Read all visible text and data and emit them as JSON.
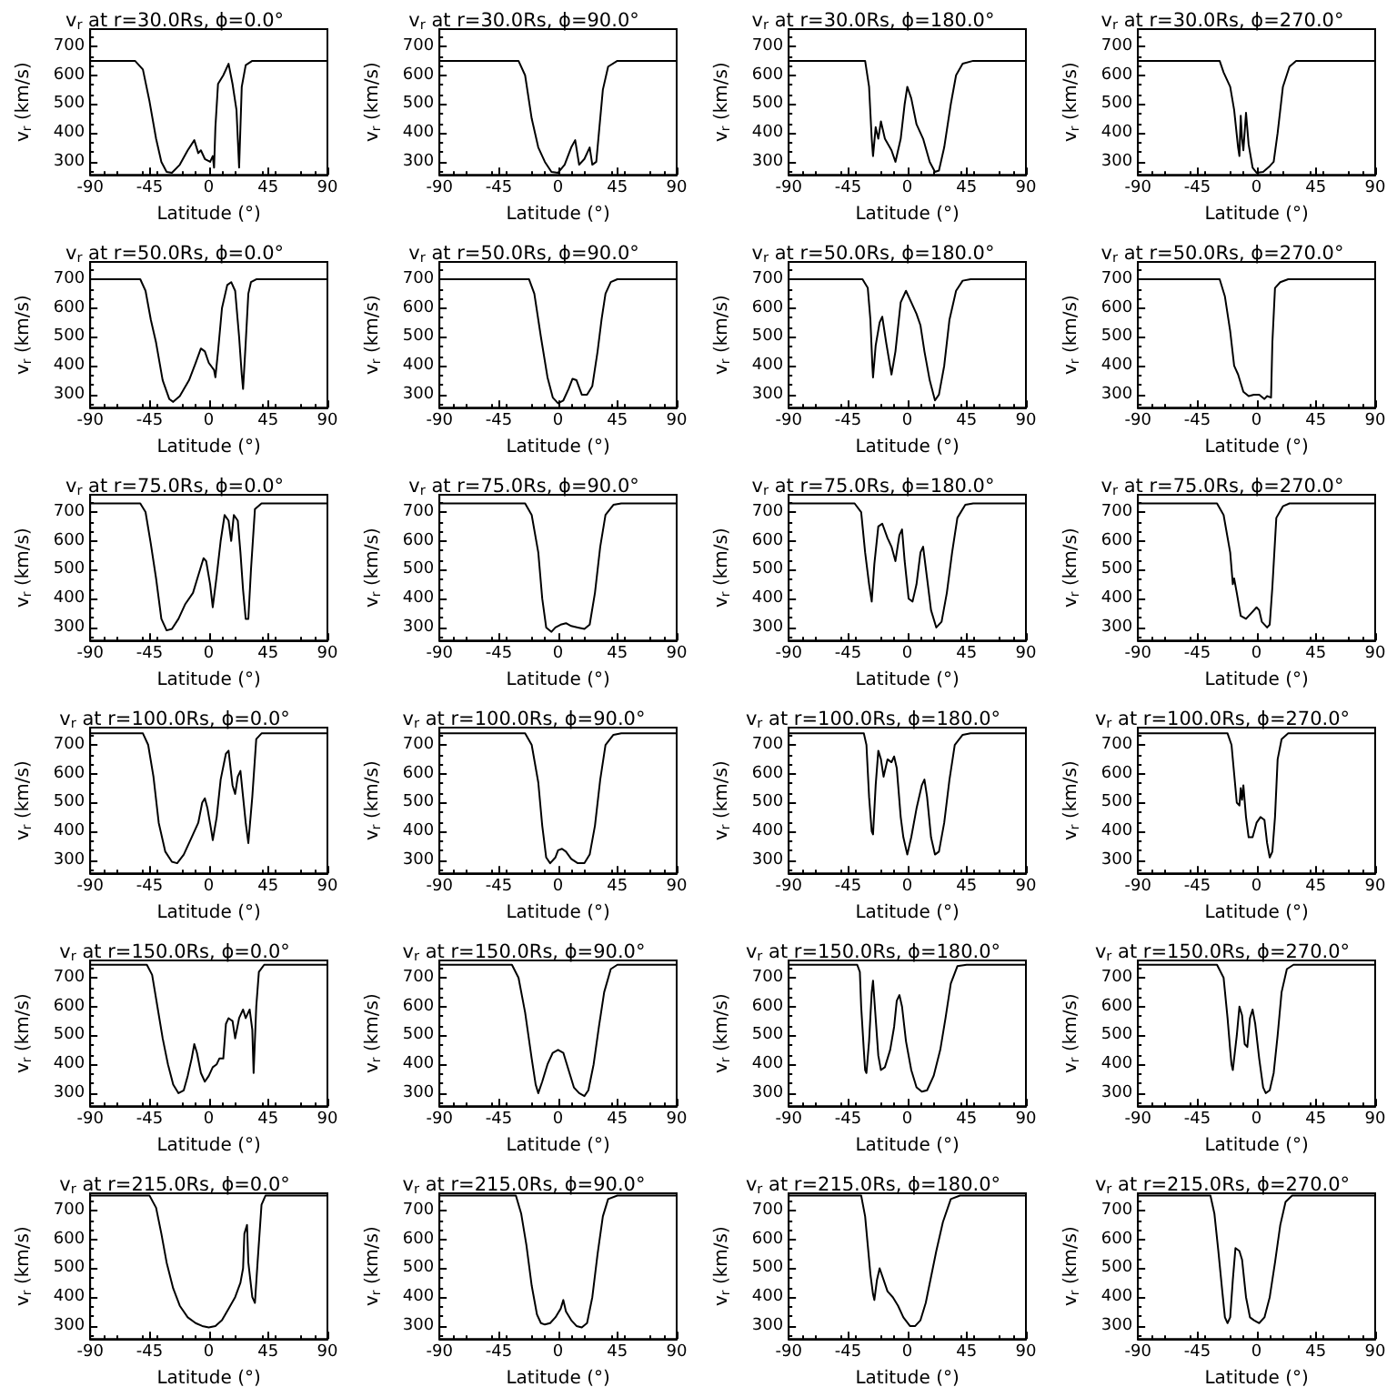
{
  "chart_data": [
    {
      "type": "line",
      "title": "v$_{r}$ at r=30.0Rs, ϕ=0.0°",
      "xlabel": "Latitude (°)",
      "ylabel": "v$_{r}$ (km/s)",
      "xlim": [
        -90,
        90
      ],
      "xticks": [
        -90,
        -45,
        0,
        45,
        90
      ],
      "ylim": [
        255,
        760
      ],
      "yticks": [
        300,
        400,
        500,
        600,
        700
      ],
      "marker": "none",
      "x": [
        -90,
        -56,
        -50,
        -45,
        -40,
        -36,
        -32,
        -28,
        -22,
        -16,
        -11,
        -8,
        -6,
        -3,
        1,
        3,
        4,
        5,
        7,
        11,
        15,
        18,
        21,
        23,
        25,
        28,
        33,
        90
      ],
      "series": [
        {
          "color": "#000000",
          "values": [
            650,
            650,
            620,
            510,
            380,
            300,
            265,
            262,
            290,
            340,
            375,
            330,
            340,
            310,
            300,
            320,
            280,
            420,
            570,
            600,
            640,
            570,
            480,
            280,
            560,
            635,
            650,
            650
          ]
        }
      ]
    },
    {
      "type": "line",
      "title": "v$_{r}$ at r=30.0Rs, ϕ=90.0°",
      "xlabel": "Latitude (°)",
      "ylabel": "v$_{r}$ (km/s)",
      "xlim": [
        -90,
        90
      ],
      "xticks": [
        -90,
        -45,
        0,
        45,
        90
      ],
      "ylim": [
        255,
        760
      ],
      "yticks": [
        300,
        400,
        500,
        600,
        700
      ],
      "marker": "none",
      "x": [
        -90,
        -30,
        -25,
        -20,
        -15,
        -10,
        -5,
        0,
        5,
        10,
        13,
        16,
        20,
        24,
        26,
        29,
        31,
        34,
        38,
        45,
        90
      ],
      "series": [
        {
          "color": "#000000",
          "values": [
            650,
            650,
            600,
            450,
            350,
            300,
            265,
            262,
            290,
            350,
            375,
            290,
            310,
            350,
            290,
            300,
            400,
            550,
            630,
            650,
            650
          ]
        }
      ]
    },
    {
      "type": "line",
      "title": "v$_{r}$ at r=30.0Rs, ϕ=180.0°",
      "xlabel": "Latitude (°)",
      "ylabel": "v$_{r}$ (km/s)",
      "xlim": [
        -90,
        90
      ],
      "xticks": [
        -90,
        -45,
        0,
        45,
        90
      ],
      "ylim": [
        255,
        760
      ],
      "yticks": [
        300,
        400,
        500,
        600,
        700
      ],
      "marker": "none",
      "x": [
        -90,
        -32,
        -29,
        -27,
        -26,
        -24,
        -22,
        -20,
        -17,
        -12,
        -9,
        -5,
        -2,
        0,
        3,
        7,
        12,
        17,
        21,
        24,
        28,
        33,
        37,
        42,
        50,
        90
      ],
      "series": [
        {
          "color": "#000000",
          "values": [
            650,
            650,
            560,
            380,
            320,
            420,
            380,
            440,
            380,
            340,
            300,
            380,
            500,
            560,
            520,
            430,
            380,
            300,
            265,
            270,
            350,
            500,
            600,
            640,
            650,
            650
          ]
        }
      ]
    },
    {
      "type": "line",
      "title": "v$_{r}$ at r=30.0Rs, ϕ=270.0°",
      "xlabel": "Latitude (°)",
      "ylabel": "v$_{r}$ (km/s)",
      "xlim": [
        -90,
        90
      ],
      "xticks": [
        -90,
        -45,
        0,
        45,
        90
      ],
      "ylim": [
        255,
        760
      ],
      "yticks": [
        300,
        400,
        500,
        600,
        700
      ],
      "marker": "none",
      "x": [
        -90,
        -28,
        -25,
        -20,
        -17,
        -14,
        -13,
        -12,
        -11,
        -10,
        -8,
        -6,
        -3,
        0,
        5,
        10,
        13,
        16,
        20,
        25,
        30,
        90
      ],
      "series": [
        {
          "color": "#000000",
          "values": [
            650,
            650,
            610,
            560,
            480,
            350,
            320,
            460,
            380,
            340,
            470,
            360,
            280,
            262,
            265,
            285,
            300,
            400,
            560,
            630,
            650,
            650
          ]
        }
      ]
    },
    {
      "type": "line",
      "title": "v$_{r}$ at r=50.0Rs, ϕ=0.0°",
      "xlabel": "Latitude (°)",
      "ylabel": "v$_{r}$ (km/s)",
      "xlim": [
        -90,
        90
      ],
      "xticks": [
        -90,
        -45,
        0,
        45,
        90
      ],
      "ylim": [
        255,
        760
      ],
      "yticks": [
        300,
        400,
        500,
        600,
        700
      ],
      "marker": "none",
      "x": [
        -90,
        -52,
        -48,
        -44,
        -40,
        -35,
        -30,
        -27,
        -22,
        -15,
        -10,
        -6,
        -3,
        0,
        4,
        5,
        7,
        10,
        14,
        17,
        20,
        23,
        25,
        26,
        28,
        30,
        32,
        36,
        90
      ],
      "series": [
        {
          "color": "#000000",
          "values": [
            700,
            700,
            660,
            560,
            480,
            350,
            285,
            275,
            295,
            350,
            410,
            460,
            450,
            410,
            385,
            360,
            450,
            600,
            680,
            690,
            660,
            500,
            370,
            320,
            480,
            650,
            690,
            700,
            700
          ]
        }
      ]
    },
    {
      "type": "line",
      "title": "v$_{r}$ at r=50.0Rs, ϕ=90.0°",
      "xlabel": "Latitude (°)",
      "ylabel": "v$_{r}$ (km/s)",
      "xlim": [
        -90,
        90
      ],
      "xticks": [
        -90,
        -45,
        0,
        45,
        90
      ],
      "ylim": [
        255,
        760
      ],
      "yticks": [
        300,
        400,
        500,
        600,
        700
      ],
      "marker": "none",
      "x": [
        -90,
        -22,
        -18,
        -13,
        -8,
        -4,
        0,
        4,
        8,
        11,
        14,
        18,
        22,
        26,
        30,
        33,
        36,
        40,
        45,
        90
      ],
      "series": [
        {
          "color": "#000000",
          "values": [
            700,
            700,
            650,
            500,
            360,
            290,
            270,
            280,
            320,
            355,
            350,
            300,
            300,
            330,
            450,
            560,
            650,
            690,
            700,
            700
          ]
        }
      ]
    },
    {
      "type": "line",
      "title": "v$_{r}$ at r=50.0Rs, ϕ=180.0°",
      "xlabel": "Latitude (°)",
      "ylabel": "v$_{r}$ (km/s)",
      "xlim": [
        -90,
        90
      ],
      "xticks": [
        -90,
        -45,
        0,
        45,
        90
      ],
      "ylim": [
        255,
        760
      ],
      "yticks": [
        300,
        400,
        500,
        600,
        700
      ],
      "marker": "none",
      "x": [
        -90,
        -34,
        -30,
        -28,
        -26.5,
        -26,
        -24,
        -21,
        -19,
        -16,
        -12,
        -9,
        -5,
        -1,
        3,
        7,
        10,
        13,
        17,
        21,
        24,
        28,
        32,
        37,
        42,
        48,
        90
      ],
      "series": [
        {
          "color": "#000000",
          "values": [
            700,
            700,
            670,
            560,
            400,
            360,
            470,
            550,
            570,
            480,
            370,
            450,
            620,
            660,
            620,
            580,
            540,
            450,
            350,
            280,
            300,
            400,
            560,
            660,
            695,
            700,
            700
          ]
        }
      ]
    },
    {
      "type": "line",
      "title": "v$_{r}$ at r=50.0Rs, ϕ=270.0°",
      "xlabel": "Latitude (°)",
      "ylabel": "v$_{r}$ (km/s)",
      "xlim": [
        -90,
        90
      ],
      "xticks": [
        -90,
        -45,
        0,
        45,
        90
      ],
      "ylim": [
        255,
        760
      ],
      "yticks": [
        300,
        400,
        500,
        600,
        700
      ],
      "marker": "none",
      "x": [
        -90,
        -28,
        -24,
        -20,
        -17,
        -14,
        -10,
        -6,
        -2,
        2,
        6,
        8,
        11,
        12,
        14,
        18,
        24,
        90
      ],
      "series": [
        {
          "color": "#000000",
          "values": [
            700,
            700,
            640,
            520,
            400,
            370,
            310,
            295,
            300,
            300,
            285,
            295,
            290,
            480,
            670,
            690,
            700,
            700
          ]
        }
      ]
    },
    {
      "type": "line",
      "title": "v$_{r}$ at r=75.0Rs, ϕ=0.0°",
      "xlabel": "Latitude (°)",
      "ylabel": "v$_{r}$ (km/s)",
      "xlim": [
        -90,
        90
      ],
      "xticks": [
        -90,
        -45,
        0,
        45,
        90
      ],
      "ylim": [
        255,
        760
      ],
      "yticks": [
        300,
        400,
        500,
        600,
        700
      ],
      "marker": "none",
      "x": [
        -90,
        -52,
        -48,
        -44,
        -40,
        -36,
        -32,
        -28,
        -23,
        -18,
        -12,
        -8,
        -4,
        -2,
        1,
        3,
        6,
        9,
        12,
        15,
        17,
        19,
        22,
        24,
        26,
        28,
        30,
        32,
        35,
        40,
        90
      ],
      "series": [
        {
          "color": "#000000",
          "values": [
            730,
            730,
            700,
            590,
            470,
            330,
            290,
            295,
            330,
            380,
            420,
            480,
            540,
            530,
            450,
            370,
            480,
            600,
            690,
            670,
            600,
            690,
            670,
            560,
            430,
            330,
            330,
            500,
            710,
            730,
            730
          ]
        }
      ]
    },
    {
      "type": "line",
      "title": "v$_{r}$ at r=75.0Rs, ϕ=90.0°",
      "xlabel": "Latitude (°)",
      "ylabel": "v$_{r}$ (km/s)",
      "xlim": [
        -90,
        90
      ],
      "xticks": [
        -90,
        -45,
        0,
        45,
        90
      ],
      "ylim": [
        255,
        760
      ],
      "yticks": [
        300,
        400,
        500,
        600,
        700
      ],
      "marker": "none",
      "x": [
        -90,
        -25,
        -20,
        -15,
        -12,
        -9,
        -5,
        -2,
        2,
        6,
        10,
        15,
        20,
        24,
        28,
        32,
        36,
        42,
        48,
        90
      ],
      "series": [
        {
          "color": "#000000",
          "values": [
            730,
            730,
            690,
            560,
            400,
            300,
            285,
            300,
            310,
            315,
            305,
            300,
            295,
            310,
            420,
            580,
            690,
            725,
            730,
            730
          ]
        }
      ]
    },
    {
      "type": "line",
      "title": "v$_{r}$ at r=75.0Rs, ϕ=180.0°",
      "xlabel": "Latitude (°)",
      "ylabel": "v$_{r}$ (km/s)",
      "xlim": [
        -90,
        90
      ],
      "xticks": [
        -90,
        -45,
        0,
        45,
        90
      ],
      "ylim": [
        255,
        760
      ],
      "yticks": [
        300,
        400,
        500,
        600,
        700
      ],
      "marker": "none",
      "x": [
        -90,
        -40,
        -35,
        -32,
        -29,
        -27,
        -25,
        -22,
        -19,
        -15,
        -12,
        -9,
        -6,
        -4,
        -2,
        1,
        4,
        7,
        10,
        12,
        15,
        18,
        22,
        26,
        30,
        34,
        38,
        44,
        50,
        90
      ],
      "series": [
        {
          "color": "#000000",
          "values": [
            730,
            730,
            700,
            560,
            450,
            390,
            520,
            650,
            660,
            610,
            580,
            530,
            620,
            640,
            530,
            400,
            390,
            450,
            560,
            580,
            470,
            360,
            300,
            320,
            420,
            560,
            680,
            725,
            730,
            730
          ]
        }
      ]
    },
    {
      "type": "line",
      "title": "v$_{r}$ at r=75.0Rs, ϕ=270.0°",
      "xlabel": "Latitude (°)",
      "ylabel": "v$_{r}$ (km/s)",
      "xlim": [
        -90,
        90
      ],
      "xticks": [
        -90,
        -45,
        0,
        45,
        90
      ],
      "ylim": [
        255,
        760
      ],
      "yticks": [
        300,
        400,
        500,
        600,
        700
      ],
      "marker": "none",
      "x": [
        -90,
        -30,
        -25,
        -20,
        -18,
        -17,
        -15,
        -12,
        -8,
        -4,
        0,
        2,
        4,
        8,
        10,
        12,
        15,
        20,
        25,
        90
      ],
      "series": [
        {
          "color": "#000000",
          "values": [
            730,
            730,
            690,
            560,
            450,
            470,
            420,
            340,
            330,
            350,
            370,
            360,
            320,
            300,
            310,
            440,
            680,
            720,
            730,
            730
          ]
        }
      ]
    },
    {
      "type": "line",
      "title": "v$_{r}$ at r=100.0Rs, ϕ=0.0°",
      "xlabel": "Latitude (°)",
      "ylabel": "v$_{r}$ (km/s)",
      "xlim": [
        -90,
        90
      ],
      "xticks": [
        -90,
        -45,
        0,
        45,
        90
      ],
      "ylim": [
        255,
        760
      ],
      "yticks": [
        300,
        400,
        500,
        600,
        700
      ],
      "marker": "none",
      "x": [
        -90,
        -50,
        -46,
        -42,
        -38,
        -33,
        -28,
        -24,
        -19,
        -13,
        -8,
        -5,
        -3,
        -1,
        2,
        3,
        6,
        9,
        13,
        15,
        18,
        20,
        22,
        24,
        26,
        28,
        30,
        33,
        36,
        40,
        90
      ],
      "series": [
        {
          "color": "#000000",
          "values": [
            740,
            740,
            700,
            590,
            430,
            330,
            295,
            290,
            320,
            380,
            430,
            500,
            515,
            480,
            400,
            370,
            450,
            580,
            670,
            680,
            560,
            530,
            590,
            610,
            520,
            430,
            360,
            520,
            720,
            740,
            740
          ]
        }
      ]
    },
    {
      "type": "line",
      "title": "v$_{r}$ at r=100.0Rs, ϕ=90.0°",
      "xlabel": "Latitude (°)",
      "ylabel": "v$_{r}$ (km/s)",
      "xlim": [
        -90,
        90
      ],
      "xticks": [
        -90,
        -45,
        0,
        45,
        90
      ],
      "ylim": [
        255,
        760
      ],
      "yticks": [
        300,
        400,
        500,
        600,
        700
      ],
      "marker": "none",
      "x": [
        -90,
        -25,
        -20,
        -15,
        -12,
        -9,
        -6,
        -2,
        0,
        3,
        6,
        10,
        15,
        20,
        24,
        28,
        32,
        36,
        42,
        48,
        90
      ],
      "series": [
        {
          "color": "#000000",
          "values": [
            740,
            740,
            700,
            570,
            420,
            310,
            290,
            310,
            335,
            340,
            330,
            305,
            290,
            290,
            320,
            420,
            580,
            700,
            735,
            740,
            740
          ]
        }
      ]
    },
    {
      "type": "line",
      "title": "v$_{r}$ at r=100.0Rs, ϕ=180.0°",
      "xlabel": "Latitude (°)",
      "ylabel": "v$_{r}$ (km/s)",
      "xlim": [
        -90,
        90
      ],
      "xticks": [
        -90,
        -45,
        0,
        45,
        90
      ],
      "ylim": [
        255,
        760
      ],
      "yticks": [
        300,
        400,
        500,
        600,
        700
      ],
      "marker": "none",
      "x": [
        -90,
        -33,
        -31,
        -29,
        -27,
        -26,
        -24,
        -22,
        -20,
        -18,
        -15,
        -12,
        -10,
        -8,
        -5,
        -3,
        0,
        3,
        7,
        11,
        13,
        15,
        18,
        21,
        24,
        28,
        32,
        36,
        42,
        48,
        90
      ],
      "series": [
        {
          "color": "#000000",
          "values": [
            740,
            740,
            700,
            520,
            400,
            390,
            560,
            680,
            650,
            590,
            650,
            640,
            660,
            620,
            450,
            380,
            320,
            380,
            480,
            560,
            580,
            520,
            380,
            320,
            330,
            430,
            580,
            700,
            735,
            740,
            740
          ]
        }
      ]
    },
    {
      "type": "line",
      "title": "v$_{r}$ at r=100.0Rs, ϕ=270.0°",
      "xlabel": "Latitude (°)",
      "ylabel": "v$_{r}$ (km/s)",
      "xlim": [
        -90,
        90
      ],
      "xticks": [
        -90,
        -45,
        0,
        45,
        90
      ],
      "ylim": [
        255,
        760
      ],
      "yticks": [
        300,
        400,
        500,
        600,
        700
      ],
      "marker": "none",
      "x": [
        -90,
        -22,
        -19,
        -17,
        -15,
        -13,
        -12,
        -11,
        -10,
        -8,
        -6,
        -3,
        0,
        3,
        6,
        8,
        10,
        12,
        14,
        16,
        19,
        24,
        90
      ],
      "series": [
        {
          "color": "#000000",
          "values": [
            740,
            740,
            700,
            600,
            500,
            490,
            550,
            510,
            560,
            450,
            380,
            380,
            430,
            450,
            440,
            360,
            310,
            330,
            450,
            650,
            720,
            740,
            740
          ]
        }
      ]
    },
    {
      "type": "line",
      "title": "v$_{r}$ at r=150.0Rs, ϕ=0.0°",
      "xlabel": "Latitude (°)",
      "ylabel": "v$_{r}$ (km/s)",
      "xlim": [
        -90,
        90
      ],
      "xticks": [
        -90,
        -45,
        0,
        45,
        90
      ],
      "ylim": [
        255,
        760
      ],
      "yticks": [
        300,
        400,
        500,
        600,
        700
      ],
      "marker": "none",
      "x": [
        -90,
        -47,
        -43,
        -39,
        -35,
        -31,
        -27,
        -23,
        -19,
        -16,
        -13,
        -11,
        -9,
        -6,
        -3,
        0,
        3,
        6,
        8,
        11,
        13,
        15,
        18,
        20,
        23,
        26,
        28,
        31,
        33,
        34,
        36,
        38,
        42,
        90
      ],
      "series": [
        {
          "color": "#000000",
          "values": [
            745,
            745,
            710,
            600,
            490,
            400,
            330,
            300,
            310,
            360,
            420,
            470,
            440,
            370,
            340,
            360,
            390,
            400,
            420,
            420,
            540,
            560,
            550,
            490,
            560,
            590,
            560,
            590,
            520,
            370,
            600,
            720,
            745,
            745
          ]
        }
      ]
    },
    {
      "type": "line",
      "title": "v$_{r}$ at r=150.0Rs, ϕ=90.0°",
      "xlabel": "Latitude (°)",
      "ylabel": "v$_{r}$ (km/s)",
      "xlim": [
        -90,
        90
      ],
      "xticks": [
        -90,
        -45,
        0,
        45,
        90
      ],
      "ylim": [
        255,
        760
      ],
      "yticks": [
        300,
        400,
        500,
        600,
        700
      ],
      "marker": "none",
      "x": [
        -90,
        -35,
        -30,
        -25,
        -20,
        -17,
        -15,
        -12,
        -8,
        -4,
        0,
        4,
        8,
        12,
        16,
        20,
        23,
        27,
        31,
        35,
        40,
        45,
        90
      ],
      "series": [
        {
          "color": "#000000",
          "values": [
            745,
            745,
            700,
            580,
            420,
            330,
            300,
            340,
            400,
            440,
            450,
            440,
            380,
            320,
            300,
            290,
            310,
            400,
            530,
            650,
            730,
            745,
            745
          ]
        }
      ]
    },
    {
      "type": "line",
      "title": "v$_{r}$ at r=150.0Rs, ϕ=180.0°",
      "xlabel": "Latitude (°)",
      "ylabel": "v$_{r}$ (km/s)",
      "xlim": [
        -90,
        90
      ],
      "xticks": [
        -90,
        -45,
        0,
        45,
        90
      ],
      "ylim": [
        255,
        760
      ],
      "yticks": [
        300,
        400,
        500,
        600,
        700
      ],
      "marker": "none",
      "x": [
        -90,
        -38,
        -36,
        -35,
        -33,
        -32,
        -31,
        -29,
        -27,
        -26,
        -24,
        -22,
        -20,
        -17,
        -13,
        -10,
        -8,
        -6,
        -4,
        -1,
        3,
        7,
        11,
        15,
        20,
        25,
        29,
        33,
        38,
        45,
        90
      ],
      "series": [
        {
          "color": "#000000",
          "values": [
            745,
            745,
            720,
            600,
            450,
            380,
            370,
            480,
            650,
            690,
            560,
            430,
            380,
            390,
            450,
            530,
            620,
            640,
            600,
            480,
            380,
            320,
            305,
            310,
            360,
            450,
            560,
            680,
            740,
            745,
            745
          ]
        }
      ]
    },
    {
      "type": "line",
      "title": "v$_{r}$ at r=150.0Rs, ϕ=270.0°",
      "xlabel": "Latitude (°)",
      "ylabel": "v$_{r}$ (km/s)",
      "xlim": [
        -90,
        90
      ],
      "xticks": [
        -90,
        -45,
        0,
        45,
        90
      ],
      "ylim": [
        255,
        760
      ],
      "yticks": [
        300,
        400,
        500,
        600,
        700
      ],
      "marker": "none",
      "x": [
        -90,
        -30,
        -25,
        -22,
        -20,
        -19,
        -18,
        -15,
        -13,
        -11,
        -9,
        -7,
        -5,
        -3,
        -1,
        2,
        5,
        7,
        10,
        13,
        16,
        19,
        23,
        28,
        90
      ],
      "series": [
        {
          "color": "#000000",
          "values": [
            745,
            745,
            700,
            560,
            450,
            400,
            380,
            500,
            600,
            570,
            470,
            460,
            560,
            590,
            540,
            420,
            320,
            300,
            310,
            370,
            500,
            650,
            730,
            745,
            745
          ]
        }
      ]
    },
    {
      "type": "line",
      "title": "v$_{r}$ at r=215.0Rs, ϕ=0.0°",
      "xlabel": "Latitude (°)",
      "ylabel": "v$_{r}$ (km/s)",
      "xlim": [
        -90,
        90
      ],
      "xticks": [
        -90,
        -45,
        0,
        45,
        90
      ],
      "ylim": [
        255,
        760
      ],
      "yticks": [
        300,
        400,
        500,
        600,
        700
      ],
      "marker": "none",
      "x": [
        -90,
        -45,
        -40,
        -36,
        -32,
        -27,
        -22,
        -16,
        -10,
        -5,
        0,
        5,
        10,
        15,
        20,
        24,
        26,
        27,
        29,
        30,
        33,
        35,
        37,
        40,
        43,
        90
      ],
      "series": [
        {
          "color": "#000000",
          "values": [
            752,
            752,
            710,
            620,
            520,
            430,
            370,
            330,
            310,
            300,
            295,
            300,
            320,
            360,
            400,
            450,
            500,
            620,
            650,
            520,
            400,
            380,
            520,
            720,
            752,
            752
          ]
        }
      ]
    },
    {
      "type": "line",
      "title": "v$_{r}$ at r=215.0Rs, ϕ=90.0°",
      "xlabel": "Latitude (°)",
      "ylabel": "v$_{r}$ (km/s)",
      "xlim": [
        -90,
        90
      ],
      "xticks": [
        -90,
        -45,
        0,
        45,
        90
      ],
      "ylim": [
        255,
        760
      ],
      "yticks": [
        300,
        400,
        500,
        600,
        700
      ],
      "marker": "none",
      "x": [
        -90,
        -32,
        -28,
        -24,
        -20,
        -16,
        -13,
        -10,
        -6,
        -2,
        2,
        4,
        6,
        10,
        14,
        18,
        22,
        26,
        30,
        34,
        38,
        45,
        90
      ],
      "series": [
        {
          "color": "#000000",
          "values": [
            752,
            752,
            690,
            580,
            440,
            340,
            310,
            305,
            310,
            330,
            360,
            390,
            350,
            320,
            300,
            295,
            310,
            400,
            550,
            680,
            740,
            752,
            752
          ]
        }
      ]
    },
    {
      "type": "line",
      "title": "v$_{r}$ at r=215.0Rs, ϕ=180.0°",
      "xlabel": "Latitude (°)",
      "ylabel": "v$_{r}$ (km/s)",
      "xlim": [
        -90,
        90
      ],
      "xticks": [
        -90,
        -45,
        0,
        45,
        90
      ],
      "ylim": [
        255,
        760
      ],
      "yticks": [
        300,
        400,
        500,
        600,
        700
      ],
      "marker": "none",
      "x": [
        -90,
        -35,
        -32,
        -30,
        -28,
        -26,
        -25,
        -23,
        -21,
        -18,
        -15,
        -11,
        -7,
        -3,
        2,
        6,
        10,
        14,
        18,
        22,
        27,
        33,
        40,
        90
      ],
      "series": [
        {
          "color": "#000000",
          "values": [
            752,
            752,
            680,
            580,
            480,
            410,
            390,
            460,
            500,
            460,
            420,
            400,
            370,
            330,
            300,
            300,
            320,
            380,
            470,
            560,
            660,
            740,
            752,
            752
          ]
        }
      ]
    },
    {
      "type": "line",
      "title": "v$_{r}$ at r=215.0Rs, ϕ=270.0°",
      "xlabel": "Latitude (°)",
      "ylabel": "v$_{r}$ (km/s)",
      "xlim": [
        -90,
        90
      ],
      "xticks": [
        -90,
        -45,
        0,
        45,
        90
      ],
      "ylim": [
        255,
        760
      ],
      "yticks": [
        300,
        400,
        500,
        600,
        700
      ],
      "marker": "none",
      "x": [
        -90,
        -35,
        -32,
        -29,
        -26,
        -24,
        -22,
        -20,
        -18,
        -16,
        -13,
        -11,
        -8,
        -5,
        -2,
        2,
        6,
        10,
        14,
        18,
        22,
        27,
        90
      ],
      "series": [
        {
          "color": "#000000",
          "values": [
            752,
            752,
            690,
            560,
            420,
            330,
            310,
            330,
            460,
            570,
            560,
            530,
            400,
            330,
            320,
            310,
            330,
            400,
            520,
            650,
            730,
            752,
            752
          ]
        }
      ]
    }
  ]
}
